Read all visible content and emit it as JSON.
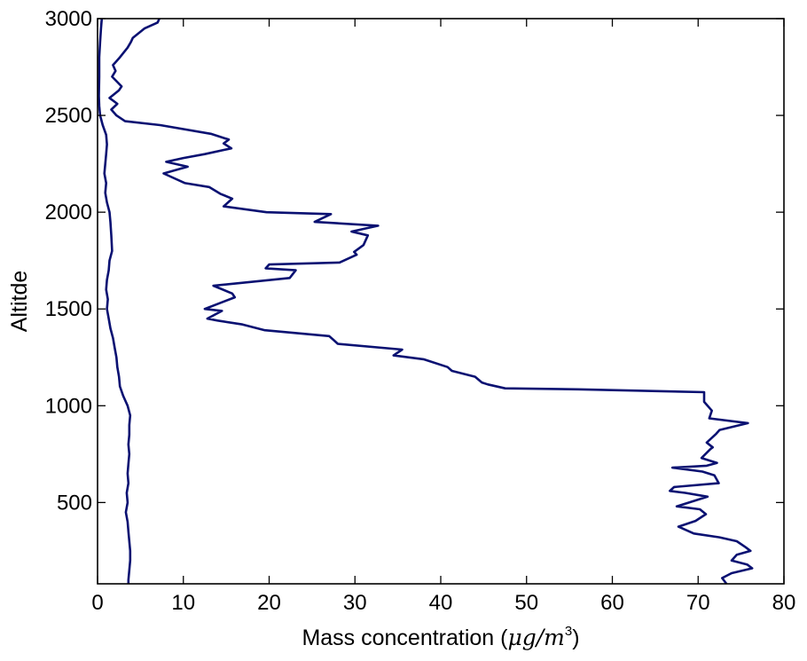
{
  "chart_data": {
    "type": "line",
    "title": "",
    "xlabel": "Mass concentration (μg/m³)",
    "xlabel_text": "Mass concentration (",
    "xlabel_unit": "μg/m",
    "xlabel_exp": "3",
    "xlabel_close": ")",
    "ylabel": "Altitde",
    "xlim": [
      0,
      80
    ],
    "ylim": [
      80,
      3000
    ],
    "xticks": [
      0,
      10,
      20,
      30,
      40,
      50,
      60,
      70,
      80
    ],
    "yticks": [
      500,
      1000,
      1500,
      2000,
      2500,
      3000
    ],
    "grid": false,
    "legend": "none",
    "line_color": "#0a1172",
    "series": [
      {
        "points": [
          [
            7.2,
            3000
          ],
          [
            7.0,
            2980
          ],
          [
            5.5,
            2950
          ],
          [
            4.1,
            2900
          ],
          [
            3.9,
            2880
          ],
          [
            3.5,
            2850
          ],
          [
            2.6,
            2800
          ],
          [
            1.8,
            2760
          ],
          [
            2.1,
            2730
          ],
          [
            1.7,
            2700
          ],
          [
            2.8,
            2650
          ],
          [
            2.5,
            2630
          ],
          [
            1.4,
            2590
          ],
          [
            2.3,
            2560
          ],
          [
            1.6,
            2530
          ],
          [
            2.2,
            2500
          ],
          [
            3.2,
            2470
          ],
          [
            7.3,
            2450
          ],
          [
            13.2,
            2405
          ],
          [
            15.3,
            2375
          ],
          [
            14.7,
            2355
          ],
          [
            15.6,
            2330
          ],
          [
            12.5,
            2300
          ],
          [
            10.0,
            2280
          ],
          [
            8.0,
            2260
          ],
          [
            10.5,
            2235
          ],
          [
            7.7,
            2200
          ],
          [
            10.2,
            2150
          ],
          [
            13.0,
            2130
          ],
          [
            14.3,
            2095
          ],
          [
            15.7,
            2070
          ],
          [
            14.7,
            2030
          ],
          [
            19.7,
            2000
          ],
          [
            27.2,
            1990
          ],
          [
            25.3,
            1950
          ],
          [
            32.7,
            1930
          ],
          [
            29.6,
            1900
          ],
          [
            31.5,
            1880
          ],
          [
            31.0,
            1830
          ],
          [
            29.9,
            1795
          ],
          [
            30.2,
            1780
          ],
          [
            28.2,
            1740
          ],
          [
            20.0,
            1730
          ],
          [
            19.6,
            1710
          ],
          [
            23.1,
            1700
          ],
          [
            22.4,
            1660
          ],
          [
            13.5,
            1620
          ],
          [
            15.7,
            1580
          ],
          [
            16.0,
            1560
          ],
          [
            12.5,
            1500
          ],
          [
            14.5,
            1490
          ],
          [
            12.8,
            1450
          ],
          [
            14.0,
            1440
          ],
          [
            16.9,
            1420
          ],
          [
            19.5,
            1390
          ],
          [
            27.0,
            1360
          ],
          [
            27.5,
            1340
          ],
          [
            28.0,
            1320
          ],
          [
            35.5,
            1290
          ],
          [
            34.5,
            1260
          ],
          [
            38.0,
            1240
          ],
          [
            40.8,
            1200
          ],
          [
            41.3,
            1180
          ],
          [
            44.0,
            1150
          ],
          [
            44.8,
            1120
          ],
          [
            45.5,
            1110
          ],
          [
            47.5,
            1090
          ],
          [
            56.0,
            1085
          ],
          [
            70.7,
            1070
          ],
          [
            70.7,
            1020
          ],
          [
            71.6,
            975
          ],
          [
            71.3,
            935
          ],
          [
            75.8,
            910
          ],
          [
            72.5,
            875
          ],
          [
            72.1,
            855
          ],
          [
            71.0,
            810
          ],
          [
            71.7,
            785
          ],
          [
            71.4,
            775
          ],
          [
            70.4,
            730
          ],
          [
            72.2,
            705
          ],
          [
            71.0,
            690
          ],
          [
            67.0,
            680
          ],
          [
            70.5,
            660
          ],
          [
            71.9,
            640
          ],
          [
            72.4,
            600
          ],
          [
            67.2,
            580
          ],
          [
            66.7,
            560
          ],
          [
            68.5,
            550
          ],
          [
            71.1,
            530
          ],
          [
            67.5,
            480
          ],
          [
            70.2,
            465
          ],
          [
            70.9,
            440
          ],
          [
            69.7,
            405
          ],
          [
            67.7,
            375
          ],
          [
            69.5,
            340
          ],
          [
            72.5,
            320
          ],
          [
            74.5,
            300
          ],
          [
            75.5,
            270
          ],
          [
            76.1,
            250
          ],
          [
            74.5,
            230
          ],
          [
            73.9,
            200
          ],
          [
            75.7,
            180
          ],
          [
            76.3,
            160
          ],
          [
            73.9,
            135
          ],
          [
            72.8,
            110
          ],
          [
            73.3,
            80
          ]
        ]
      },
      {
        "points": [
          [
            0.5,
            3000
          ],
          [
            0.4,
            2950
          ],
          [
            0.3,
            2880
          ],
          [
            0.2,
            2800
          ],
          [
            0.2,
            2700
          ],
          [
            0.15,
            2600
          ],
          [
            0.2,
            2550
          ],
          [
            0.3,
            2500
          ],
          [
            0.6,
            2450
          ],
          [
            1.0,
            2400
          ],
          [
            1.1,
            2350
          ],
          [
            1.0,
            2300
          ],
          [
            0.9,
            2250
          ],
          [
            0.8,
            2200
          ],
          [
            1.0,
            2150
          ],
          [
            0.9,
            2100
          ],
          [
            1.1,
            2050
          ],
          [
            1.4,
            2000
          ],
          [
            1.5,
            1950
          ],
          [
            1.6,
            1880
          ],
          [
            1.7,
            1800
          ],
          [
            1.4,
            1750
          ],
          [
            1.3,
            1700
          ],
          [
            1.1,
            1650
          ],
          [
            1.0,
            1600
          ],
          [
            1.2,
            1550
          ],
          [
            1.1,
            1500
          ],
          [
            1.3,
            1450
          ],
          [
            1.5,
            1400
          ],
          [
            1.8,
            1350
          ],
          [
            2.0,
            1300
          ],
          [
            2.2,
            1250
          ],
          [
            2.3,
            1200
          ],
          [
            2.5,
            1150
          ],
          [
            2.6,
            1100
          ],
          [
            3.0,
            1050
          ],
          [
            3.5,
            1000
          ],
          [
            3.8,
            950
          ],
          [
            3.7,
            900
          ],
          [
            3.7,
            850
          ],
          [
            3.6,
            800
          ],
          [
            3.7,
            750
          ],
          [
            3.6,
            700
          ],
          [
            3.5,
            650
          ],
          [
            3.6,
            600
          ],
          [
            3.4,
            550
          ],
          [
            3.5,
            500
          ],
          [
            3.3,
            450
          ],
          [
            3.5,
            400
          ],
          [
            3.6,
            350
          ],
          [
            3.7,
            300
          ],
          [
            3.8,
            250
          ],
          [
            3.8,
            200
          ],
          [
            3.7,
            150
          ],
          [
            3.6,
            100
          ],
          [
            3.6,
            80
          ]
        ]
      }
    ]
  }
}
